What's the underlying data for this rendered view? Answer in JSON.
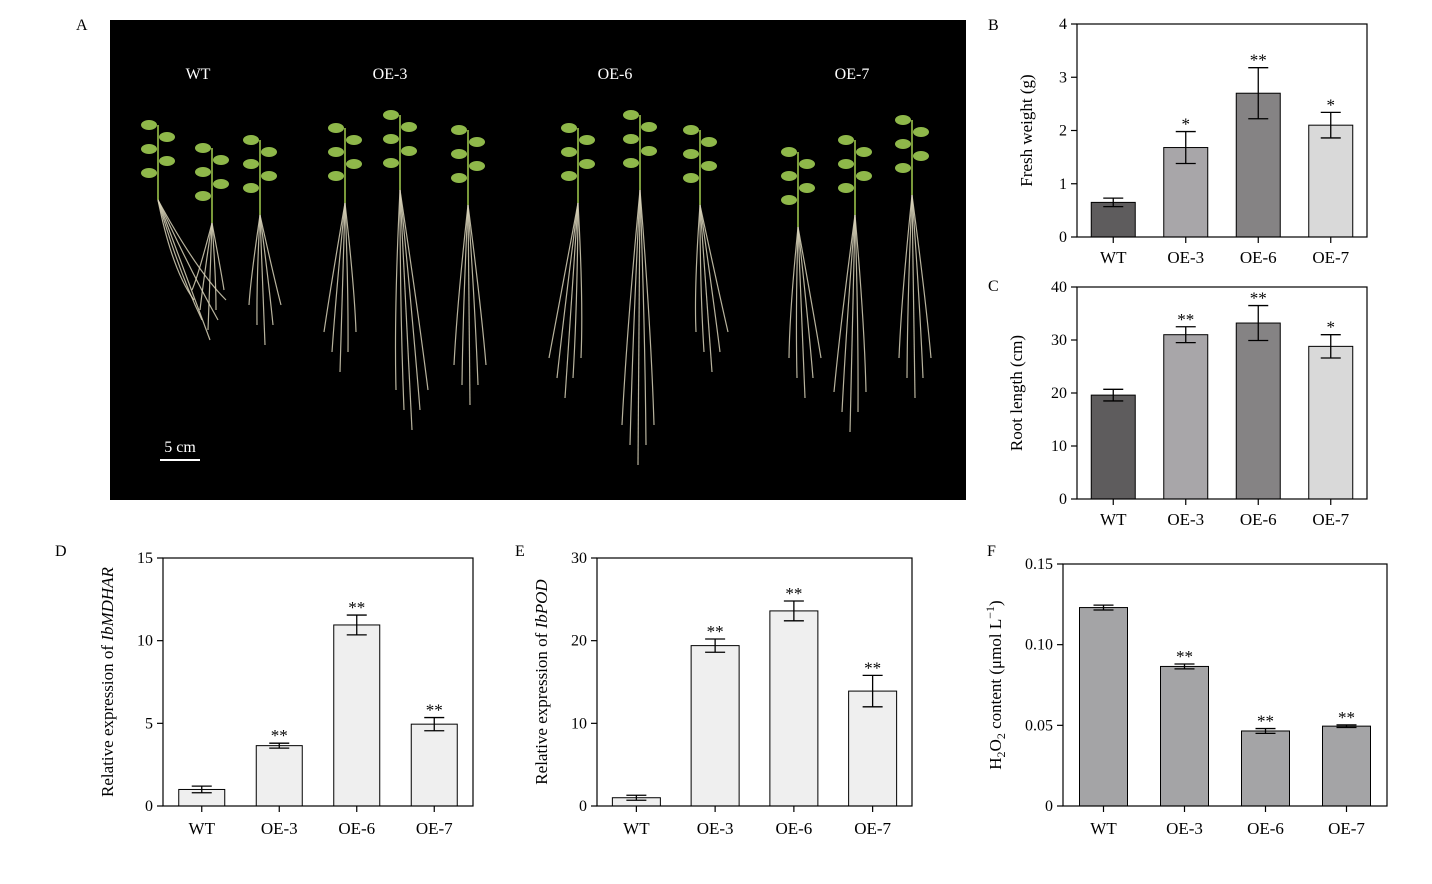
{
  "panels": {
    "A": {
      "letter": "A",
      "group_labels": [
        "WT",
        "OE-3",
        "OE-6",
        "OE-7"
      ],
      "scale_bar": "5 cm"
    }
  },
  "chart_data": [
    {
      "id": "B",
      "letter": "B",
      "type": "bar",
      "categories": [
        "WT",
        "OE-3",
        "OE-6",
        "OE-7"
      ],
      "values": [
        0.65,
        1.68,
        2.7,
        2.1
      ],
      "errors": [
        0.08,
        0.3,
        0.48,
        0.24
      ],
      "significance": [
        "",
        "*",
        "**",
        "*"
      ],
      "ylabel": "Fresh weight (g)",
      "ylim": [
        0,
        4
      ],
      "yticks": [
        0,
        1,
        2,
        3,
        4
      ],
      "colors": [
        "#5e5c5d",
        "#a8a6a9",
        "#858384",
        "#d9d9d9"
      ]
    },
    {
      "id": "C",
      "letter": "C",
      "type": "bar",
      "categories": [
        "WT",
        "OE-3",
        "OE-6",
        "OE-7"
      ],
      "values": [
        19.6,
        31.0,
        33.2,
        28.8
      ],
      "errors": [
        1.1,
        1.5,
        3.3,
        2.2
      ],
      "significance": [
        "",
        "**",
        "**",
        "*"
      ],
      "ylabel": "Root length (cm)",
      "ylim": [
        0,
        40
      ],
      "yticks": [
        0,
        10,
        20,
        30,
        40
      ],
      "colors": [
        "#5e5c5d",
        "#a8a6a9",
        "#858384",
        "#d9d9d9"
      ]
    },
    {
      "id": "D",
      "letter": "D",
      "type": "bar",
      "categories": [
        "WT",
        "OE-3",
        "OE-6",
        "OE-7"
      ],
      "values": [
        1.0,
        3.65,
        10.95,
        4.95
      ],
      "errors": [
        0.2,
        0.15,
        0.6,
        0.4
      ],
      "significance": [
        "",
        "**",
        "**",
        "**"
      ],
      "ylabel_prefix": "Relative expression of ",
      "ylabel_gene": "IbMDHAR",
      "ylim": [
        0,
        15
      ],
      "yticks": [
        0,
        5,
        10,
        15
      ],
      "colors": [
        "#efefef",
        "#efefef",
        "#efefef",
        "#efefef"
      ]
    },
    {
      "id": "E",
      "letter": "E",
      "type": "bar",
      "categories": [
        "WT",
        "OE-3",
        "OE-6",
        "OE-7"
      ],
      "values": [
        1.0,
        19.4,
        23.6,
        13.9
      ],
      "errors": [
        0.3,
        0.8,
        1.2,
        1.9
      ],
      "significance": [
        "",
        "**",
        "**",
        "**"
      ],
      "ylabel_prefix": "Relative expression of ",
      "ylabel_gene": "IbPOD",
      "ylim": [
        0,
        30
      ],
      "yticks": [
        0,
        10,
        20,
        30
      ],
      "colors": [
        "#efefef",
        "#efefef",
        "#efefef",
        "#efefef"
      ]
    },
    {
      "id": "F",
      "letter": "F",
      "type": "bar",
      "categories": [
        "WT",
        "OE-3",
        "OE-6",
        "OE-7"
      ],
      "values": [
        0.123,
        0.0865,
        0.0465,
        0.0495
      ],
      "errors": [
        0.0015,
        0.0015,
        0.0015,
        0.0008
      ],
      "significance": [
        "",
        "**",
        "**",
        "**"
      ],
      "ylabel_parts": [
        "H",
        "2",
        "O",
        "2",
        " content (μmol L",
        "−1",
        ")"
      ],
      "ylim": [
        0,
        0.15
      ],
      "yticks": [
        "0",
        "0.05",
        "0.10",
        "0.15"
      ],
      "colors": [
        "#a4a4a6",
        "#a4a4a6",
        "#a4a4a6",
        "#a4a4a6"
      ]
    }
  ]
}
